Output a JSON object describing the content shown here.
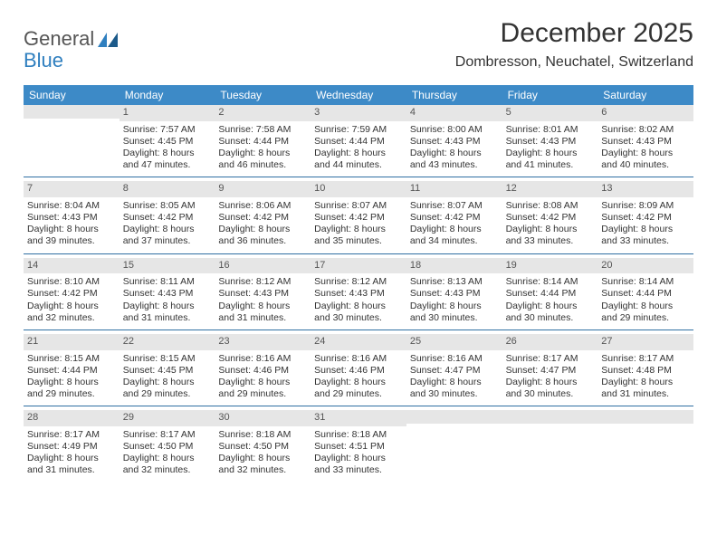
{
  "brand": {
    "part1": "General",
    "part2": "Blue"
  },
  "title": "December 2025",
  "subtitle": "Dombresson, Neuchatel, Switzerland",
  "style": {
    "header_bg": "#3d8ac7",
    "header_fg": "#ffffff",
    "daynum_bg": "#e6e6e6",
    "rule_color": "#2f6fa3",
    "brand_accent": "#2f7fbf",
    "title_fontsize": 30,
    "subtitle_fontsize": 16,
    "body_fontsize": 10.5
  },
  "day_names": [
    "Sunday",
    "Monday",
    "Tuesday",
    "Wednesday",
    "Thursday",
    "Friday",
    "Saturday"
  ],
  "weeks": [
    [
      null,
      {
        "n": "1",
        "sr": "Sunrise: 7:57 AM",
        "ss": "Sunset: 4:45 PM",
        "d1": "Daylight: 8 hours",
        "d2": "and 47 minutes."
      },
      {
        "n": "2",
        "sr": "Sunrise: 7:58 AM",
        "ss": "Sunset: 4:44 PM",
        "d1": "Daylight: 8 hours",
        "d2": "and 46 minutes."
      },
      {
        "n": "3",
        "sr": "Sunrise: 7:59 AM",
        "ss": "Sunset: 4:44 PM",
        "d1": "Daylight: 8 hours",
        "d2": "and 44 minutes."
      },
      {
        "n": "4",
        "sr": "Sunrise: 8:00 AM",
        "ss": "Sunset: 4:43 PM",
        "d1": "Daylight: 8 hours",
        "d2": "and 43 minutes."
      },
      {
        "n": "5",
        "sr": "Sunrise: 8:01 AM",
        "ss": "Sunset: 4:43 PM",
        "d1": "Daylight: 8 hours",
        "d2": "and 41 minutes."
      },
      {
        "n": "6",
        "sr": "Sunrise: 8:02 AM",
        "ss": "Sunset: 4:43 PM",
        "d1": "Daylight: 8 hours",
        "d2": "and 40 minutes."
      }
    ],
    [
      {
        "n": "7",
        "sr": "Sunrise: 8:04 AM",
        "ss": "Sunset: 4:43 PM",
        "d1": "Daylight: 8 hours",
        "d2": "and 39 minutes."
      },
      {
        "n": "8",
        "sr": "Sunrise: 8:05 AM",
        "ss": "Sunset: 4:42 PM",
        "d1": "Daylight: 8 hours",
        "d2": "and 37 minutes."
      },
      {
        "n": "9",
        "sr": "Sunrise: 8:06 AM",
        "ss": "Sunset: 4:42 PM",
        "d1": "Daylight: 8 hours",
        "d2": "and 36 minutes."
      },
      {
        "n": "10",
        "sr": "Sunrise: 8:07 AM",
        "ss": "Sunset: 4:42 PM",
        "d1": "Daylight: 8 hours",
        "d2": "and 35 minutes."
      },
      {
        "n": "11",
        "sr": "Sunrise: 8:07 AM",
        "ss": "Sunset: 4:42 PM",
        "d1": "Daylight: 8 hours",
        "d2": "and 34 minutes."
      },
      {
        "n": "12",
        "sr": "Sunrise: 8:08 AM",
        "ss": "Sunset: 4:42 PM",
        "d1": "Daylight: 8 hours",
        "d2": "and 33 minutes."
      },
      {
        "n": "13",
        "sr": "Sunrise: 8:09 AM",
        "ss": "Sunset: 4:42 PM",
        "d1": "Daylight: 8 hours",
        "d2": "and 33 minutes."
      }
    ],
    [
      {
        "n": "14",
        "sr": "Sunrise: 8:10 AM",
        "ss": "Sunset: 4:42 PM",
        "d1": "Daylight: 8 hours",
        "d2": "and 32 minutes."
      },
      {
        "n": "15",
        "sr": "Sunrise: 8:11 AM",
        "ss": "Sunset: 4:43 PM",
        "d1": "Daylight: 8 hours",
        "d2": "and 31 minutes."
      },
      {
        "n": "16",
        "sr": "Sunrise: 8:12 AM",
        "ss": "Sunset: 4:43 PM",
        "d1": "Daylight: 8 hours",
        "d2": "and 31 minutes."
      },
      {
        "n": "17",
        "sr": "Sunrise: 8:12 AM",
        "ss": "Sunset: 4:43 PM",
        "d1": "Daylight: 8 hours",
        "d2": "and 30 minutes."
      },
      {
        "n": "18",
        "sr": "Sunrise: 8:13 AM",
        "ss": "Sunset: 4:43 PM",
        "d1": "Daylight: 8 hours",
        "d2": "and 30 minutes."
      },
      {
        "n": "19",
        "sr": "Sunrise: 8:14 AM",
        "ss": "Sunset: 4:44 PM",
        "d1": "Daylight: 8 hours",
        "d2": "and 30 minutes."
      },
      {
        "n": "20",
        "sr": "Sunrise: 8:14 AM",
        "ss": "Sunset: 4:44 PM",
        "d1": "Daylight: 8 hours",
        "d2": "and 29 minutes."
      }
    ],
    [
      {
        "n": "21",
        "sr": "Sunrise: 8:15 AM",
        "ss": "Sunset: 4:44 PM",
        "d1": "Daylight: 8 hours",
        "d2": "and 29 minutes."
      },
      {
        "n": "22",
        "sr": "Sunrise: 8:15 AM",
        "ss": "Sunset: 4:45 PM",
        "d1": "Daylight: 8 hours",
        "d2": "and 29 minutes."
      },
      {
        "n": "23",
        "sr": "Sunrise: 8:16 AM",
        "ss": "Sunset: 4:46 PM",
        "d1": "Daylight: 8 hours",
        "d2": "and 29 minutes."
      },
      {
        "n": "24",
        "sr": "Sunrise: 8:16 AM",
        "ss": "Sunset: 4:46 PM",
        "d1": "Daylight: 8 hours",
        "d2": "and 29 minutes."
      },
      {
        "n": "25",
        "sr": "Sunrise: 8:16 AM",
        "ss": "Sunset: 4:47 PM",
        "d1": "Daylight: 8 hours",
        "d2": "and 30 minutes."
      },
      {
        "n": "26",
        "sr": "Sunrise: 8:17 AM",
        "ss": "Sunset: 4:47 PM",
        "d1": "Daylight: 8 hours",
        "d2": "and 30 minutes."
      },
      {
        "n": "27",
        "sr": "Sunrise: 8:17 AM",
        "ss": "Sunset: 4:48 PM",
        "d1": "Daylight: 8 hours",
        "d2": "and 31 minutes."
      }
    ],
    [
      {
        "n": "28",
        "sr": "Sunrise: 8:17 AM",
        "ss": "Sunset: 4:49 PM",
        "d1": "Daylight: 8 hours",
        "d2": "and 31 minutes."
      },
      {
        "n": "29",
        "sr": "Sunrise: 8:17 AM",
        "ss": "Sunset: 4:50 PM",
        "d1": "Daylight: 8 hours",
        "d2": "and 32 minutes."
      },
      {
        "n": "30",
        "sr": "Sunrise: 8:18 AM",
        "ss": "Sunset: 4:50 PM",
        "d1": "Daylight: 8 hours",
        "d2": "and 32 minutes."
      },
      {
        "n": "31",
        "sr": "Sunrise: 8:18 AM",
        "ss": "Sunset: 4:51 PM",
        "d1": "Daylight: 8 hours",
        "d2": "and 33 minutes."
      },
      null,
      null,
      null
    ]
  ]
}
